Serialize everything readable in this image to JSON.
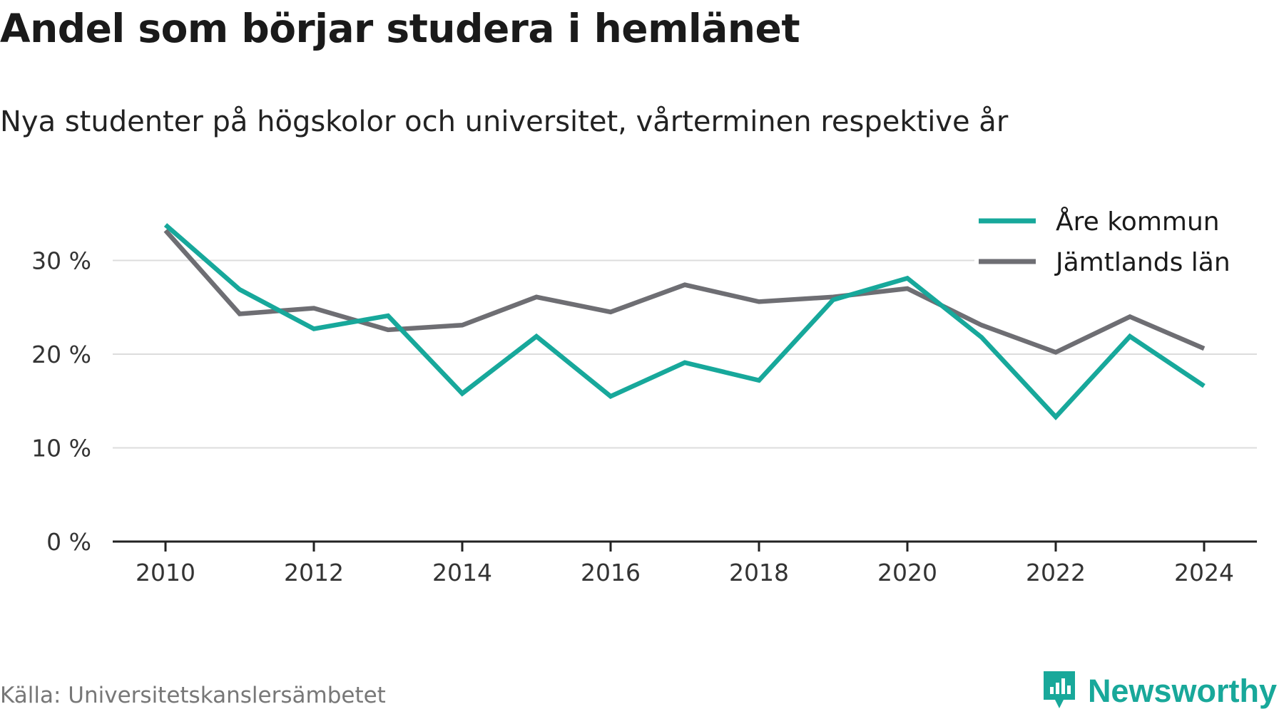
{
  "header": {
    "title": "Andel som börjar studera i hemlänet",
    "subtitle": "Nya studenter på högskolor och universitet, vårterminen respektive år"
  },
  "footer": {
    "source": "Källa: Universitetskanslersämbetet",
    "brand": "Newsworthy",
    "brand_icon": "newsworthy-logo-icon"
  },
  "colors": {
    "are": "#17a89b",
    "jamtland": "#6e6e73",
    "grid": "#dcdcdc",
    "axis": "#222222"
  },
  "chart_data": {
    "type": "line",
    "title": "Andel som börjar studera i hemlänet",
    "subtitle": "Nya studenter på högskolor och universitet, vårterminen respektive år",
    "x": [
      2010,
      2011,
      2012,
      2013,
      2014,
      2015,
      2016,
      2017,
      2018,
      2019,
      2020,
      2021,
      2022,
      2023,
      2024
    ],
    "x_ticks": [
      "2010",
      "2012",
      "2014",
      "2016",
      "2018",
      "2020",
      "2022",
      "2024"
    ],
    "y_ticks": [
      "0 %",
      "10 %",
      "20 %",
      "30 %"
    ],
    "y_tick_values": [
      0,
      10,
      20,
      30
    ],
    "ylim": [
      0,
      35
    ],
    "unit": "%",
    "grid": true,
    "legend_position": "top-right",
    "series": [
      {
        "name": "Åre kommun",
        "color": "#17a89b",
        "values": [
          33.8,
          26.9,
          22.7,
          24.1,
          15.8,
          21.9,
          15.5,
          19.1,
          17.2,
          25.8,
          28.1,
          21.8,
          13.3,
          21.9,
          16.6
        ]
      },
      {
        "name": "Jämtlands län",
        "color": "#6e6e73",
        "values": [
          33.2,
          24.3,
          24.9,
          22.6,
          23.1,
          26.1,
          24.5,
          27.4,
          25.6,
          26.1,
          27.0,
          23.1,
          20.2,
          24.0,
          20.6
        ]
      }
    ]
  }
}
